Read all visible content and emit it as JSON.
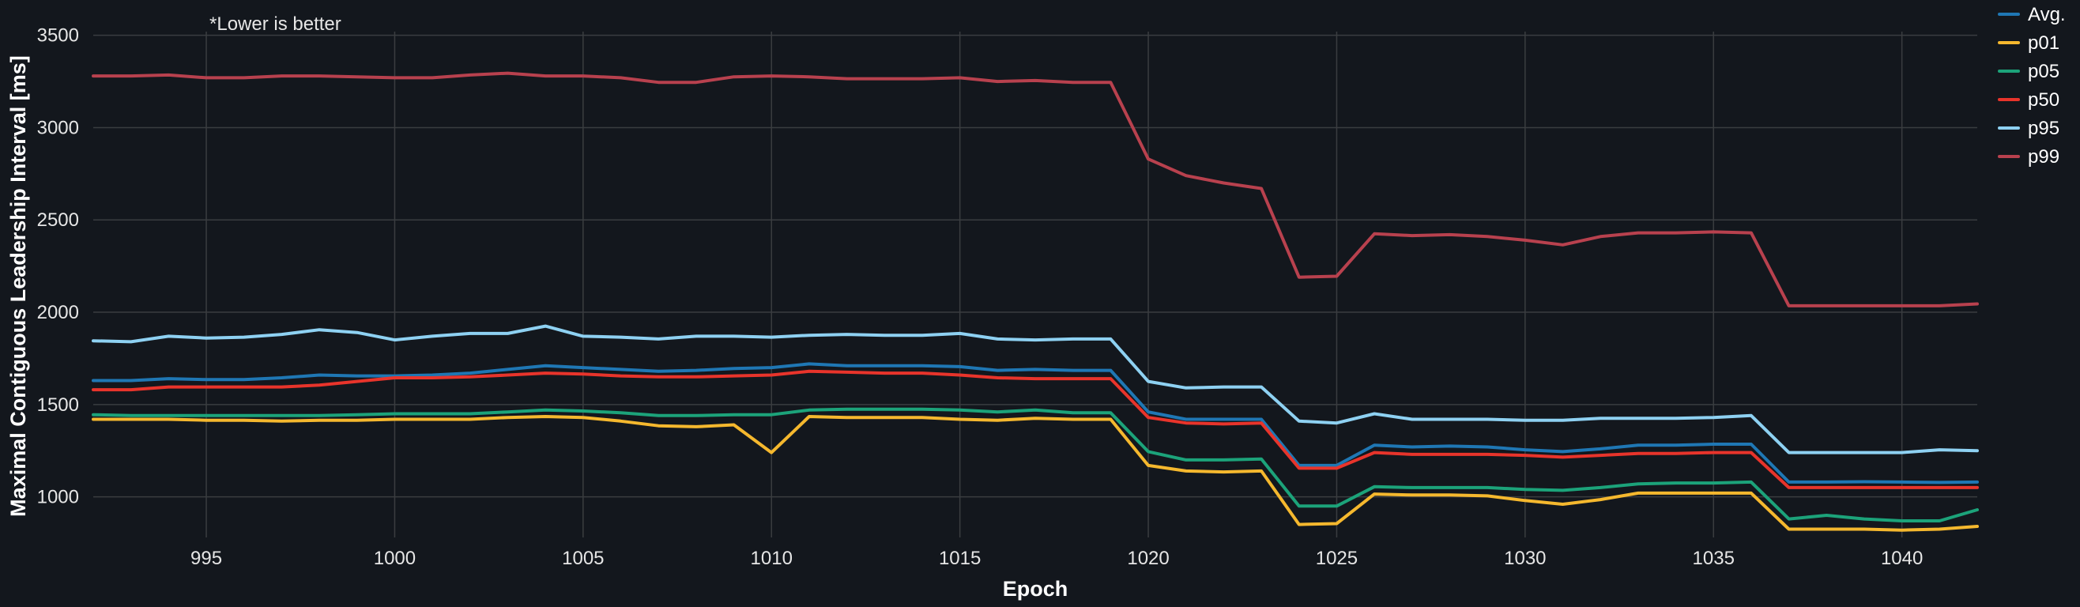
{
  "chart_data": {
    "type": "line",
    "annotation": "*Lower is better",
    "xlabel": "Epoch",
    "ylabel": "Maximal Contiguous Leadership Interval [ms]",
    "xlim": [
      992,
      1042
    ],
    "ylim": [
      780,
      3520
    ],
    "xticks": [
      995,
      1000,
      1005,
      1010,
      1015,
      1020,
      1025,
      1030,
      1035,
      1040
    ],
    "yticks": [
      1000,
      1500,
      2000,
      2500,
      3000,
      3500
    ],
    "grid": true,
    "legend": "top-right",
    "x": [
      992,
      993,
      994,
      995,
      996,
      997,
      998,
      999,
      1000,
      1001,
      1002,
      1003,
      1004,
      1005,
      1006,
      1007,
      1008,
      1009,
      1010,
      1011,
      1012,
      1013,
      1014,
      1015,
      1016,
      1017,
      1018,
      1019,
      1020,
      1021,
      1022,
      1023,
      1024,
      1025,
      1026,
      1027,
      1028,
      1029,
      1030,
      1031,
      1032,
      1033,
      1034,
      1035,
      1036,
      1037,
      1038,
      1039,
      1040,
      1041,
      1042
    ],
    "series": [
      {
        "name": "Avg.",
        "color": "#1f77b4",
        "values": [
          1630,
          1630,
          1640,
          1635,
          1635,
          1645,
          1660,
          1655,
          1655,
          1660,
          1670,
          1690,
          1710,
          1700,
          1690,
          1680,
          1685,
          1695,
          1700,
          1720,
          1710,
          1710,
          1710,
          1705,
          1685,
          1690,
          1685,
          1685,
          1460,
          1420,
          1420,
          1420,
          1170,
          1170,
          1280,
          1270,
          1275,
          1270,
          1255,
          1245,
          1260,
          1280,
          1280,
          1285,
          1285,
          1080,
          1080,
          1082,
          1080,
          1078,
          1080
        ]
      },
      {
        "name": "p01",
        "color": "#f5b82e",
        "values": [
          1420,
          1420,
          1420,
          1415,
          1415,
          1410,
          1415,
          1415,
          1420,
          1420,
          1420,
          1430,
          1435,
          1430,
          1410,
          1385,
          1380,
          1390,
          1240,
          1435,
          1430,
          1430,
          1430,
          1420,
          1415,
          1425,
          1420,
          1420,
          1170,
          1140,
          1135,
          1140,
          850,
          855,
          1015,
          1010,
          1010,
          1005,
          980,
          960,
          985,
          1020,
          1020,
          1020,
          1020,
          825,
          825,
          825,
          820,
          825,
          840
        ]
      },
      {
        "name": "p05",
        "color": "#1ca37a",
        "values": [
          1445,
          1440,
          1440,
          1440,
          1440,
          1440,
          1440,
          1445,
          1450,
          1450,
          1450,
          1460,
          1470,
          1465,
          1455,
          1440,
          1440,
          1445,
          1445,
          1470,
          1475,
          1475,
          1475,
          1470,
          1460,
          1470,
          1455,
          1455,
          1245,
          1200,
          1200,
          1205,
          950,
          950,
          1055,
          1050,
          1050,
          1050,
          1040,
          1035,
          1050,
          1070,
          1075,
          1075,
          1080,
          880,
          900,
          880,
          870,
          870,
          930
        ]
      },
      {
        "name": "p50",
        "color": "#e8342b",
        "values": [
          1580,
          1580,
          1595,
          1595,
          1595,
          1595,
          1605,
          1625,
          1645,
          1645,
          1650,
          1660,
          1670,
          1665,
          1655,
          1650,
          1650,
          1655,
          1660,
          1680,
          1675,
          1670,
          1670,
          1660,
          1645,
          1640,
          1640,
          1640,
          1430,
          1400,
          1395,
          1400,
          1155,
          1155,
          1240,
          1230,
          1230,
          1230,
          1225,
          1215,
          1225,
          1235,
          1235,
          1240,
          1240,
          1050,
          1050,
          1050,
          1050,
          1050,
          1050
        ]
      },
      {
        "name": "p95",
        "color": "#8ed1f2",
        "values": [
          1845,
          1840,
          1870,
          1860,
          1865,
          1880,
          1905,
          1890,
          1850,
          1870,
          1885,
          1885,
          1925,
          1870,
          1865,
          1855,
          1870,
          1870,
          1865,
          1875,
          1880,
          1875,
          1875,
          1885,
          1855,
          1850,
          1855,
          1855,
          1625,
          1590,
          1595,
          1595,
          1410,
          1400,
          1450,
          1420,
          1420,
          1420,
          1415,
          1415,
          1425,
          1425,
          1425,
          1430,
          1440,
          1240,
          1240,
          1240,
          1240,
          1255,
          1250
        ]
      },
      {
        "name": "p99",
        "color": "#b8414e",
        "values": [
          3280,
          3280,
          3285,
          3270,
          3270,
          3280,
          3280,
          3275,
          3270,
          3270,
          3285,
          3295,
          3280,
          3280,
          3270,
          3245,
          3245,
          3275,
          3280,
          3275,
          3265,
          3265,
          3265,
          3270,
          3250,
          3255,
          3245,
          3245,
          2830,
          2740,
          2700,
          2670,
          2190,
          2195,
          2425,
          2415,
          2420,
          2410,
          2390,
          2365,
          2410,
          2430,
          2430,
          2435,
          2430,
          2035,
          2035,
          2035,
          2035,
          2035,
          2045
        ]
      }
    ]
  }
}
